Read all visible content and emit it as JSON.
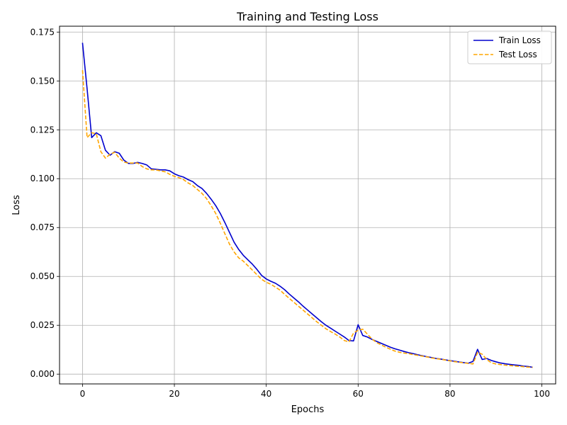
{
  "chart_data": {
    "type": "line",
    "title": "Training and Testing Loss",
    "xlabel": "Epochs",
    "ylabel": "Loss",
    "xlim": [
      -5,
      103
    ],
    "ylim": [
      -0.005,
      0.178
    ],
    "x_ticks": [
      0,
      20,
      40,
      60,
      80,
      100
    ],
    "x_tick_labels": [
      "0",
      "20",
      "40",
      "60",
      "80",
      "100"
    ],
    "y_ticks": [
      0.0,
      0.025,
      0.05,
      0.075,
      0.1,
      0.125,
      0.15,
      0.175
    ],
    "y_tick_labels": [
      "0.000",
      "0.025",
      "0.050",
      "0.075",
      "0.100",
      "0.125",
      "0.150",
      "0.175"
    ],
    "grid": true,
    "legend_position": "top-right",
    "series": [
      {
        "name": "Train Loss",
        "color": "#0000cd",
        "dash": "solid",
        "x": [
          0,
          1,
          2,
          3,
          4,
          5,
          6,
          7,
          8,
          9,
          10,
          11,
          12,
          13,
          14,
          15,
          16,
          17,
          18,
          19,
          20,
          21,
          22,
          23,
          24,
          25,
          26,
          27,
          28,
          29,
          30,
          31,
          32,
          33,
          34,
          35,
          36,
          37,
          38,
          39,
          40,
          41,
          42,
          43,
          44,
          45,
          46,
          47,
          48,
          49,
          50,
          51,
          52,
          53,
          54,
          55,
          56,
          57,
          58,
          59,
          60,
          61,
          62,
          63,
          64,
          65,
          66,
          67,
          68,
          69,
          70,
          71,
          72,
          73,
          74,
          75,
          76,
          77,
          78,
          79,
          80,
          81,
          82,
          83,
          84,
          85,
          86,
          87,
          88,
          89,
          90,
          91,
          92,
          93,
          94,
          95,
          96,
          97,
          98
        ],
        "values": [
          0.1695,
          0.146,
          0.121,
          0.1235,
          0.122,
          0.1145,
          0.112,
          0.1138,
          0.113,
          0.1095,
          0.1078,
          0.1078,
          0.1083,
          0.1078,
          0.107,
          0.105,
          0.1048,
          0.1045,
          0.1045,
          0.104,
          0.1025,
          0.1015,
          0.1008,
          0.0995,
          0.0985,
          0.0965,
          0.095,
          0.0925,
          0.0895,
          0.0862,
          0.0822,
          0.0775,
          0.0725,
          0.0675,
          0.0638,
          0.0608,
          0.0585,
          0.0562,
          0.0535,
          0.0505,
          0.0487,
          0.0475,
          0.0465,
          0.045,
          0.0432,
          0.041,
          0.039,
          0.037,
          0.0348,
          0.0328,
          0.0308,
          0.0288,
          0.0268,
          0.025,
          0.0235,
          0.022,
          0.0205,
          0.019,
          0.0172,
          0.017,
          0.0253,
          0.0198,
          0.019,
          0.0178,
          0.0168,
          0.0158,
          0.0148,
          0.0138,
          0.013,
          0.0123,
          0.0116,
          0.011,
          0.0105,
          0.0099,
          0.0094,
          0.0089,
          0.0085,
          0.008,
          0.0077,
          0.0073,
          0.0069,
          0.0066,
          0.0062,
          0.0059,
          0.0056,
          0.0065,
          0.0127,
          0.0075,
          0.008,
          0.007,
          0.0063,
          0.0057,
          0.0053,
          0.005,
          0.0047,
          0.0045,
          0.0041,
          0.0039,
          0.0035
        ]
      },
      {
        "name": "Test Loss",
        "color": "#ffa500",
        "dash": "dashed",
        "x": [
          0,
          1,
          2,
          3,
          4,
          5,
          6,
          7,
          8,
          9,
          10,
          11,
          12,
          13,
          14,
          15,
          16,
          17,
          18,
          19,
          20,
          21,
          22,
          23,
          24,
          25,
          26,
          27,
          28,
          29,
          30,
          31,
          32,
          33,
          34,
          35,
          36,
          37,
          38,
          39,
          40,
          41,
          42,
          43,
          44,
          45,
          46,
          47,
          48,
          49,
          50,
          51,
          52,
          53,
          54,
          55,
          56,
          57,
          58,
          59,
          60,
          61,
          62,
          63,
          64,
          65,
          66,
          67,
          68,
          69,
          70,
          71,
          72,
          73,
          74,
          75,
          76,
          77,
          78,
          79,
          80,
          81,
          82,
          83,
          84,
          85,
          86,
          87,
          88,
          89,
          90,
          91,
          92,
          93,
          94,
          95,
          96,
          97,
          98
        ],
        "values": [
          0.1555,
          0.121,
          0.1235,
          0.123,
          0.1138,
          0.1105,
          0.1125,
          0.1135,
          0.1105,
          0.1085,
          0.108,
          0.108,
          0.108,
          0.1062,
          0.105,
          0.1045,
          0.1045,
          0.104,
          0.1035,
          0.1022,
          0.1012,
          0.1005,
          0.0995,
          0.0978,
          0.0965,
          0.0945,
          0.0925,
          0.0898,
          0.0862,
          0.0822,
          0.0772,
          0.0718,
          0.0665,
          0.0625,
          0.0595,
          0.0578,
          0.0555,
          0.0532,
          0.0508,
          0.0485,
          0.047,
          0.046,
          0.0445,
          0.043,
          0.0408,
          0.0388,
          0.0368,
          0.0348,
          0.0328,
          0.0308,
          0.0288,
          0.0268,
          0.025,
          0.0232,
          0.0218,
          0.0205,
          0.019,
          0.0172,
          0.0165,
          0.021,
          0.0225,
          0.023,
          0.0205,
          0.018,
          0.0162,
          0.015,
          0.0138,
          0.0128,
          0.0118,
          0.0112,
          0.0108,
          0.0105,
          0.01,
          0.0096,
          0.0092,
          0.0088,
          0.0083,
          0.0079,
          0.0076,
          0.0072,
          0.0068,
          0.0064,
          0.0061,
          0.0058,
          0.0055,
          0.0052,
          0.0112,
          0.0102,
          0.0075,
          0.0058,
          0.0052,
          0.0049,
          0.0046,
          0.0044,
          0.0042,
          0.004,
          0.0038,
          0.0036,
          0.0035
        ]
      }
    ]
  }
}
